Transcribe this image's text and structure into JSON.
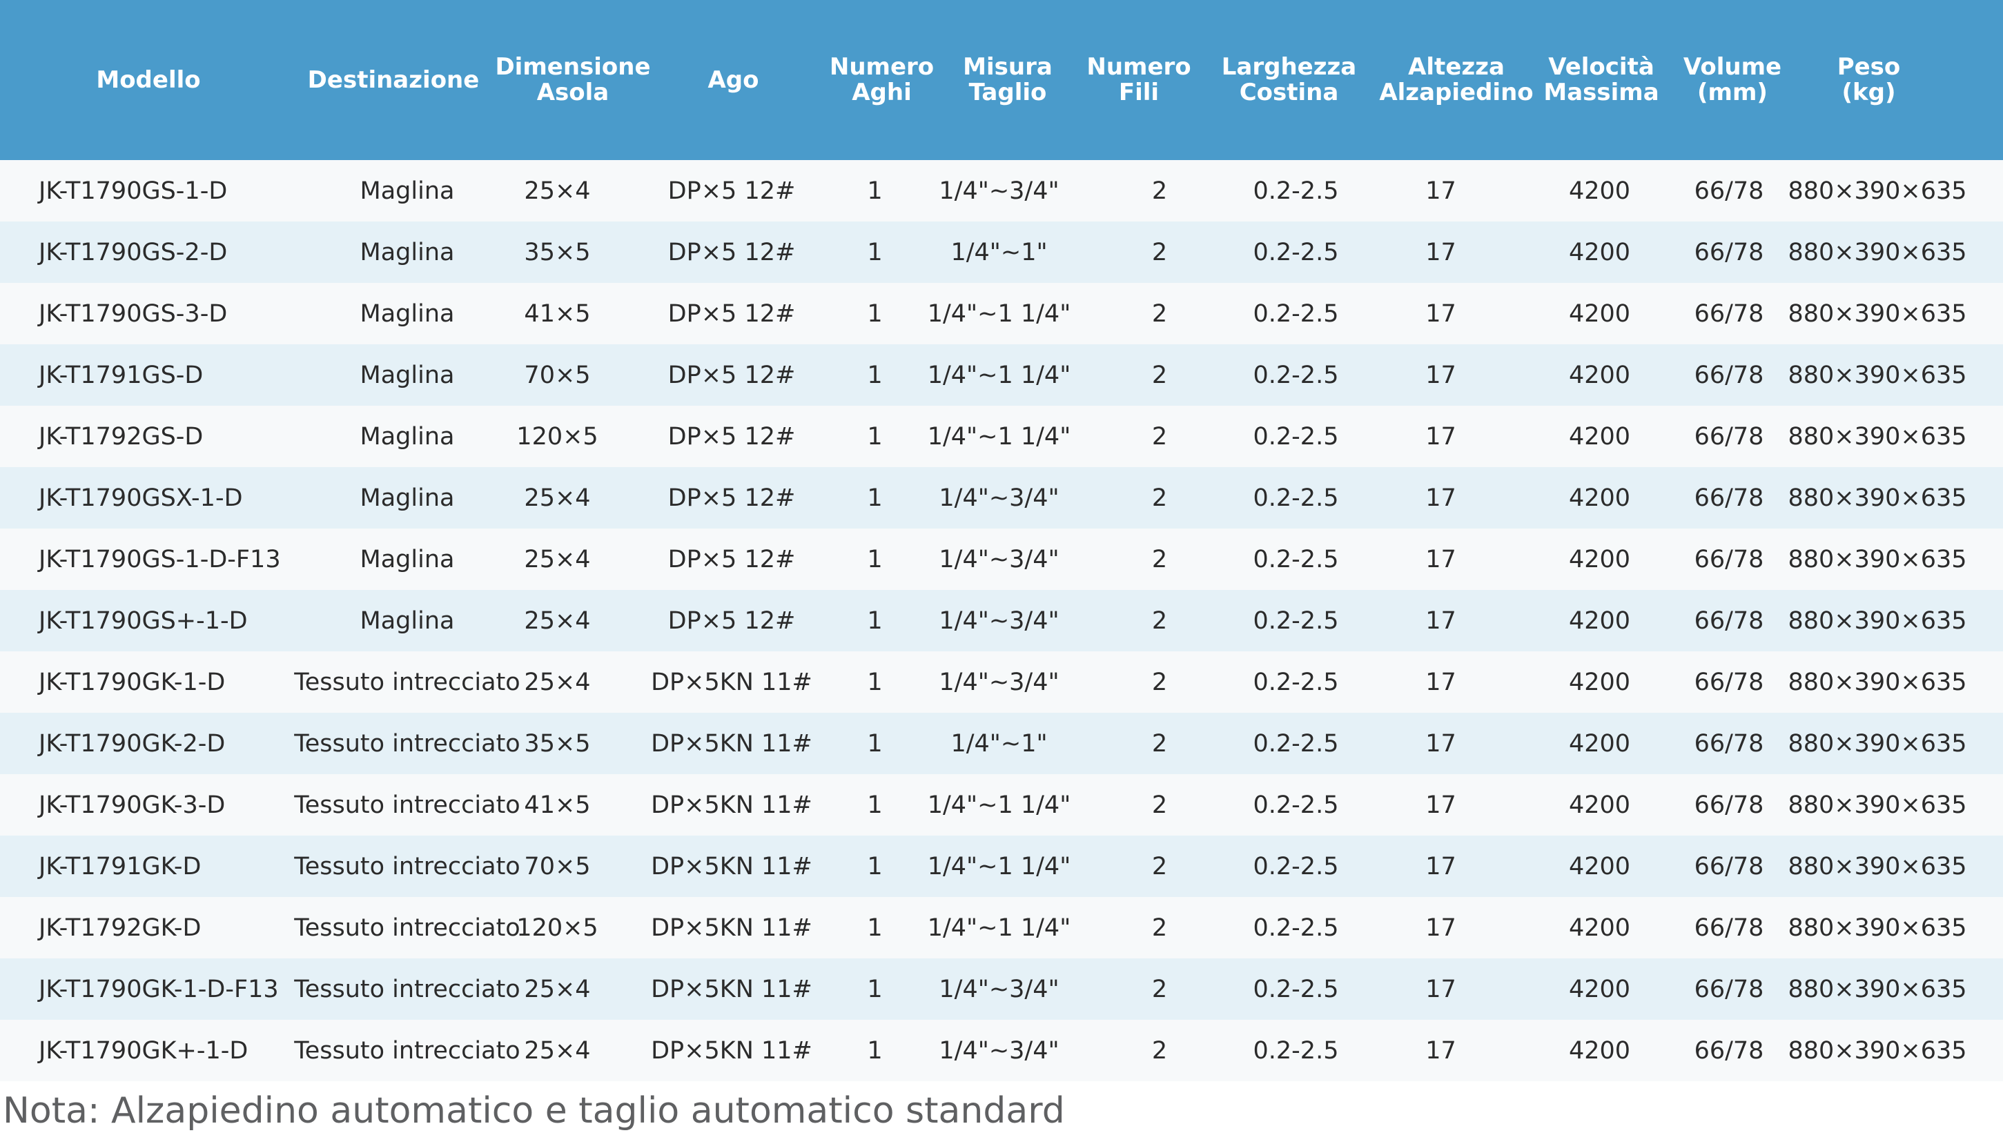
{
  "table": {
    "columns": [
      "Modello",
      "Destinazione",
      "Dimensione\nAsola",
      "Ago",
      "Numero\nAghi",
      "Misura\nTaglio",
      "Numero\nFili",
      "Larghezza\nCostina",
      "Altezza\nAlzapiedino",
      "Velocità\nMassima",
      "Volume\n(mm)",
      "Peso\n(kg)"
    ],
    "rows": [
      [
        "JK-T1790GS-1-D",
        "Maglina",
        "25×4",
        "DP×5  12#",
        "1",
        "1/4\"~3/4\"",
        "2",
        "0.2-2.5",
        "17",
        "4200",
        "66/78",
        "880×390×635"
      ],
      [
        "JK-T1790GS-2-D",
        "Maglina",
        "35×5",
        "DP×5  12#",
        "1",
        "1/4\"~1\"",
        "2",
        "0.2-2.5",
        "17",
        "4200",
        "66/78",
        "880×390×635"
      ],
      [
        "JK-T1790GS-3-D",
        "Maglina",
        "41×5",
        "DP×5  12#",
        "1",
        "1/4\"~1 1/4\"",
        "2",
        "0.2-2.5",
        "17",
        "4200",
        "66/78",
        "880×390×635"
      ],
      [
        "JK-T1791GS-D",
        "Maglina",
        "70×5",
        "DP×5  12#",
        "1",
        "1/4\"~1 1/4\"",
        "2",
        "0.2-2.5",
        "17",
        "4200",
        "66/78",
        "880×390×635"
      ],
      [
        "JK-T1792GS-D",
        "Maglina",
        "120×5",
        "DP×5  12#",
        "1",
        "1/4\"~1 1/4\"",
        "2",
        "0.2-2.5",
        "17",
        "4200",
        "66/78",
        "880×390×635"
      ],
      [
        "JK-T1790GSX-1-D",
        "Maglina",
        "25×4",
        "DP×5  12#",
        "1",
        "1/4\"~3/4\"",
        "2",
        "0.2-2.5",
        "17",
        "4200",
        "66/78",
        "880×390×635"
      ],
      [
        "JK-T1790GS-1-D-F13",
        "Maglina",
        "25×4",
        "DP×5  12#",
        "1",
        "1/4\"~3/4\"",
        "2",
        "0.2-2.5",
        "17",
        "4200",
        "66/78",
        "880×390×635"
      ],
      [
        "JK-T1790GS+-1-D",
        "Maglina",
        "25×4",
        "DP×5  12#",
        "1",
        "1/4\"~3/4\"",
        "2",
        "0.2-2.5",
        "17",
        "4200",
        "66/78",
        "880×390×635"
      ],
      [
        "JK-T1790GK-1-D",
        "Tessuto intrecciato",
        "25×4",
        "DP×5KN  11#",
        "1",
        "1/4\"~3/4\"",
        "2",
        "0.2-2.5",
        "17",
        "4200",
        "66/78",
        "880×390×635"
      ],
      [
        "JK-T1790GK-2-D",
        "Tessuto intrecciato",
        "35×5",
        "DP×5KN  11#",
        "1",
        "1/4\"~1\"",
        "2",
        "0.2-2.5",
        "17",
        "4200",
        "66/78",
        "880×390×635"
      ],
      [
        "JK-T1790GK-3-D",
        "Tessuto intrecciato",
        "41×5",
        "DP×5KN  11#",
        "1",
        "1/4\"~1 1/4\"",
        "2",
        "0.2-2.5",
        "17",
        "4200",
        "66/78",
        "880×390×635"
      ],
      [
        "JK-T1791GK-D",
        "Tessuto intrecciato",
        "70×5",
        "DP×5KN  11#",
        "1",
        "1/4\"~1 1/4\"",
        "2",
        "0.2-2.5",
        "17",
        "4200",
        "66/78",
        "880×390×635"
      ],
      [
        "JK-T1792GK-D",
        "Tessuto intrecciato",
        "120×5",
        "DP×5KN  11#",
        "1",
        "1/4\"~1 1/4\"",
        "2",
        "0.2-2.5",
        "17",
        "4200",
        "66/78",
        "880×390×635"
      ],
      [
        "JK-T1790GK-1-D-F13",
        "Tessuto intrecciato",
        "25×4",
        "DP×5KN  11#",
        "1",
        "1/4\"~3/4\"",
        "2",
        "0.2-2.5",
        "17",
        "4200",
        "66/78",
        "880×390×635"
      ],
      [
        "JK-T1790GK+-1-D",
        "Tessuto intrecciato",
        "25×4",
        "DP×5KN  11#",
        "1",
        "1/4\"~3/4\"",
        "2",
        "0.2-2.5",
        "17",
        "4200",
        "66/78",
        "880×390×635"
      ]
    ]
  },
  "note": "Nota: Alzapiedino automatico e taglio automatico standard",
  "colors": {
    "header_bg": "#4a9bcb",
    "row_light": "#f7f9fa",
    "row_tint": "#e5f1f7"
  }
}
